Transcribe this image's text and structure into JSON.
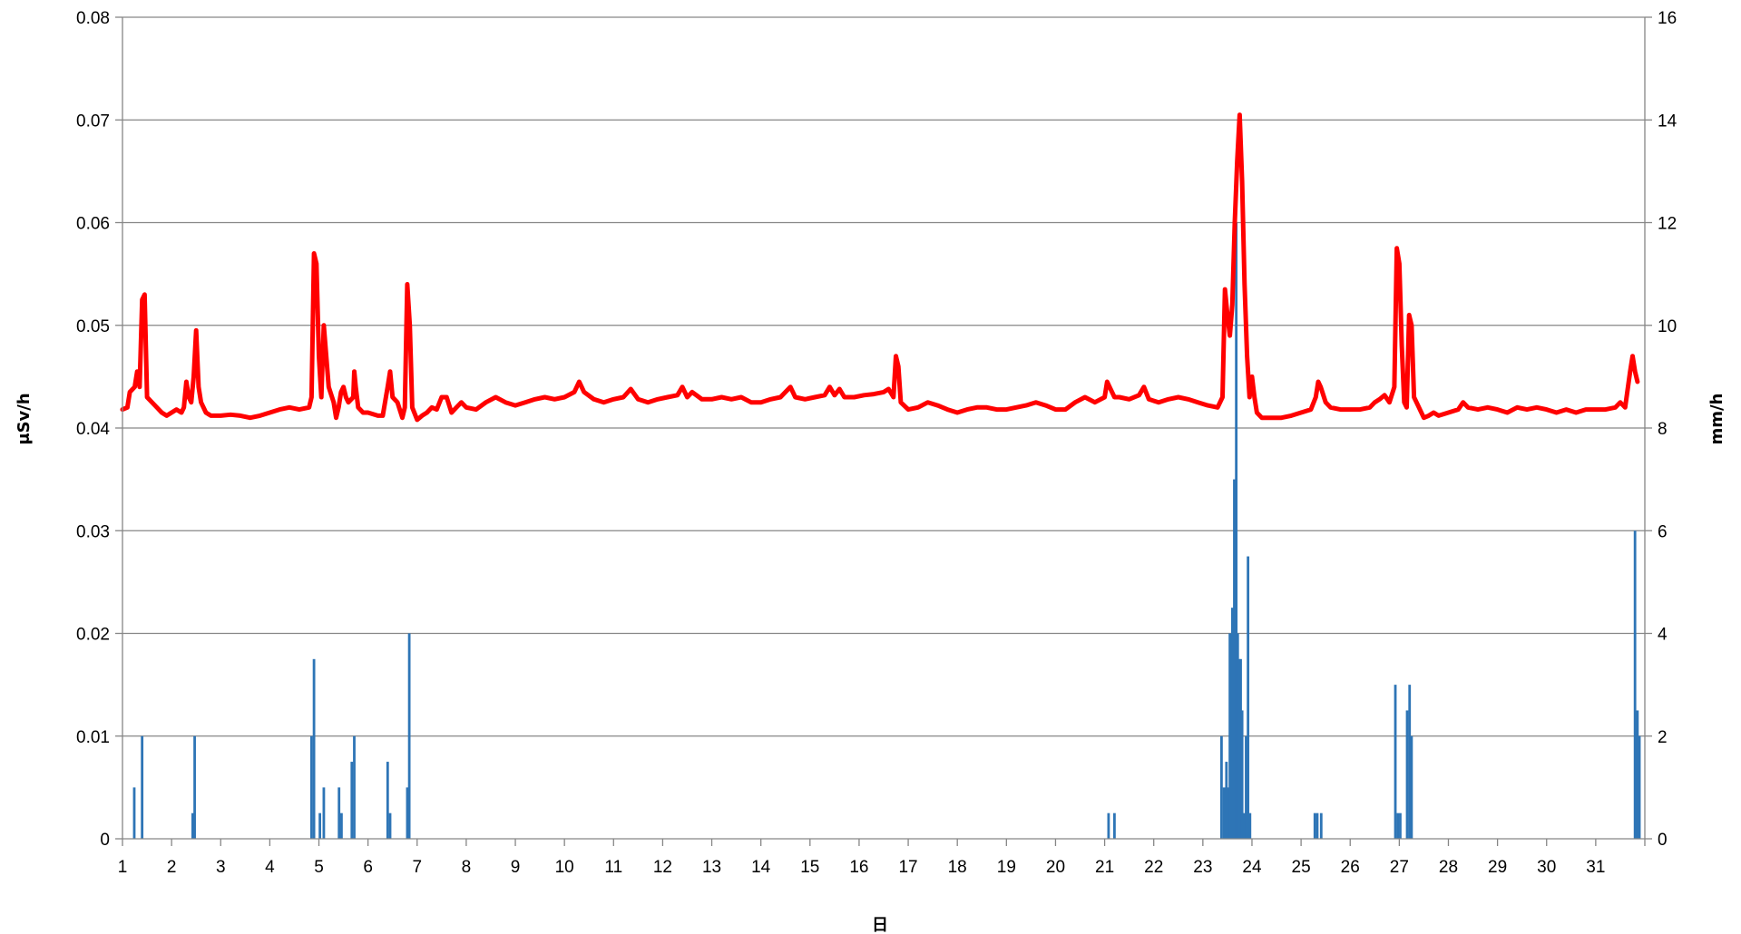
{
  "chart_data": {
    "type": "bar+line",
    "title": "",
    "xlabel": "日",
    "ylabel_left": "μSv/h",
    "ylabel_right": "mm/h",
    "xlim": [
      1,
      32
    ],
    "ylim_left": [
      0,
      0.08
    ],
    "ylim_right": [
      0,
      16
    ],
    "x_ticks": [
      1,
      2,
      3,
      4,
      5,
      6,
      7,
      8,
      9,
      10,
      11,
      12,
      13,
      14,
      15,
      16,
      17,
      18,
      19,
      20,
      21,
      22,
      23,
      24,
      25,
      26,
      27,
      28,
      29,
      30,
      31
    ],
    "y_ticks_left": [
      "0",
      "0.01",
      "0.02",
      "0.03",
      "0.04",
      "0.05",
      "0.06",
      "0.07",
      "0.08"
    ],
    "y_ticks_right": [
      "0",
      "2",
      "4",
      "6",
      "8",
      "10",
      "12",
      "14",
      "16"
    ],
    "grid": true,
    "colors": {
      "line": "#ff0000",
      "bars": "#2e75b6",
      "grid": "#868686",
      "axis": "#868686"
    },
    "series": [
      {
        "kind": "line",
        "axis": "left",
        "points": [
          [
            1.0,
            0.0418
          ],
          [
            1.1,
            0.042
          ],
          [
            1.15,
            0.0435
          ],
          [
            1.25,
            0.044
          ],
          [
            1.3,
            0.0455
          ],
          [
            1.35,
            0.044
          ],
          [
            1.4,
            0.0525
          ],
          [
            1.45,
            0.053
          ],
          [
            1.5,
            0.043
          ],
          [
            1.6,
            0.0425
          ],
          [
            1.7,
            0.042
          ],
          [
            1.8,
            0.0415
          ],
          [
            1.9,
            0.0412
          ],
          [
            2.0,
            0.0415
          ],
          [
            2.1,
            0.0418
          ],
          [
            2.2,
            0.0415
          ],
          [
            2.25,
            0.042
          ],
          [
            2.3,
            0.0445
          ],
          [
            2.35,
            0.043
          ],
          [
            2.4,
            0.0425
          ],
          [
            2.45,
            0.045
          ],
          [
            2.5,
            0.0495
          ],
          [
            2.55,
            0.044
          ],
          [
            2.6,
            0.0425
          ],
          [
            2.7,
            0.0415
          ],
          [
            2.8,
            0.0412
          ],
          [
            3.0,
            0.0412
          ],
          [
            3.2,
            0.0413
          ],
          [
            3.4,
            0.0412
          ],
          [
            3.6,
            0.041
          ],
          [
            3.8,
            0.0412
          ],
          [
            4.0,
            0.0415
          ],
          [
            4.2,
            0.0418
          ],
          [
            4.4,
            0.042
          ],
          [
            4.6,
            0.0418
          ],
          [
            4.8,
            0.042
          ],
          [
            4.85,
            0.043
          ],
          [
            4.9,
            0.057
          ],
          [
            4.95,
            0.056
          ],
          [
            5.0,
            0.047
          ],
          [
            5.05,
            0.043
          ],
          [
            5.1,
            0.05
          ],
          [
            5.15,
            0.047
          ],
          [
            5.2,
            0.044
          ],
          [
            5.3,
            0.0425
          ],
          [
            5.35,
            0.041
          ],
          [
            5.4,
            0.042
          ],
          [
            5.45,
            0.0435
          ],
          [
            5.5,
            0.044
          ],
          [
            5.55,
            0.043
          ],
          [
            5.6,
            0.0425
          ],
          [
            5.7,
            0.043
          ],
          [
            5.72,
            0.0455
          ],
          [
            5.75,
            0.044
          ],
          [
            5.8,
            0.042
          ],
          [
            5.9,
            0.0415
          ],
          [
            6.0,
            0.0415
          ],
          [
            6.2,
            0.0412
          ],
          [
            6.3,
            0.0412
          ],
          [
            6.4,
            0.044
          ],
          [
            6.45,
            0.0455
          ],
          [
            6.5,
            0.043
          ],
          [
            6.6,
            0.0425
          ],
          [
            6.7,
            0.041
          ],
          [
            6.75,
            0.042
          ],
          [
            6.8,
            0.054
          ],
          [
            6.85,
            0.05
          ],
          [
            6.9,
            0.042
          ],
          [
            7.0,
            0.0408
          ],
          [
            7.1,
            0.0412
          ],
          [
            7.2,
            0.0415
          ],
          [
            7.3,
            0.042
          ],
          [
            7.4,
            0.0418
          ],
          [
            7.5,
            0.043
          ],
          [
            7.6,
            0.043
          ],
          [
            7.7,
            0.0415
          ],
          [
            7.8,
            0.042
          ],
          [
            7.9,
            0.0425
          ],
          [
            8.0,
            0.042
          ],
          [
            8.2,
            0.0418
          ],
          [
            8.4,
            0.0425
          ],
          [
            8.6,
            0.043
          ],
          [
            8.8,
            0.0425
          ],
          [
            9.0,
            0.0422
          ],
          [
            9.2,
            0.0425
          ],
          [
            9.4,
            0.0428
          ],
          [
            9.6,
            0.043
          ],
          [
            9.8,
            0.0428
          ],
          [
            10.0,
            0.043
          ],
          [
            10.2,
            0.0435
          ],
          [
            10.3,
            0.0445
          ],
          [
            10.4,
            0.0435
          ],
          [
            10.6,
            0.0428
          ],
          [
            10.8,
            0.0425
          ],
          [
            11.0,
            0.0428
          ],
          [
            11.2,
            0.043
          ],
          [
            11.35,
            0.0438
          ],
          [
            11.5,
            0.0428
          ],
          [
            11.7,
            0.0425
          ],
          [
            11.9,
            0.0428
          ],
          [
            12.1,
            0.043
          ],
          [
            12.3,
            0.0432
          ],
          [
            12.4,
            0.044
          ],
          [
            12.5,
            0.043
          ],
          [
            12.6,
            0.0435
          ],
          [
            12.8,
            0.0428
          ],
          [
            13.0,
            0.0428
          ],
          [
            13.2,
            0.043
          ],
          [
            13.4,
            0.0428
          ],
          [
            13.6,
            0.043
          ],
          [
            13.8,
            0.0425
          ],
          [
            14.0,
            0.0425
          ],
          [
            14.2,
            0.0428
          ],
          [
            14.4,
            0.043
          ],
          [
            14.6,
            0.044
          ],
          [
            14.7,
            0.043
          ],
          [
            14.9,
            0.0428
          ],
          [
            15.1,
            0.043
          ],
          [
            15.3,
            0.0432
          ],
          [
            15.4,
            0.044
          ],
          [
            15.5,
            0.0432
          ],
          [
            15.6,
            0.0438
          ],
          [
            15.7,
            0.043
          ],
          [
            15.9,
            0.043
          ],
          [
            16.1,
            0.0432
          ],
          [
            16.3,
            0.0433
          ],
          [
            16.5,
            0.0435
          ],
          [
            16.6,
            0.0438
          ],
          [
            16.7,
            0.043
          ],
          [
            16.75,
            0.047
          ],
          [
            16.8,
            0.046
          ],
          [
            16.85,
            0.0425
          ],
          [
            17.0,
            0.0418
          ],
          [
            17.2,
            0.042
          ],
          [
            17.4,
            0.0425
          ],
          [
            17.6,
            0.0422
          ],
          [
            17.8,
            0.0418
          ],
          [
            18.0,
            0.0415
          ],
          [
            18.2,
            0.0418
          ],
          [
            18.4,
            0.042
          ],
          [
            18.6,
            0.042
          ],
          [
            18.8,
            0.0418
          ],
          [
            19.0,
            0.0418
          ],
          [
            19.2,
            0.042
          ],
          [
            19.4,
            0.0422
          ],
          [
            19.6,
            0.0425
          ],
          [
            19.8,
            0.0422
          ],
          [
            20.0,
            0.0418
          ],
          [
            20.2,
            0.0418
          ],
          [
            20.4,
            0.0425
          ],
          [
            20.6,
            0.043
          ],
          [
            20.8,
            0.0425
          ],
          [
            21.0,
            0.043
          ],
          [
            21.05,
            0.0445
          ],
          [
            21.1,
            0.044
          ],
          [
            21.2,
            0.043
          ],
          [
            21.3,
            0.043
          ],
          [
            21.5,
            0.0428
          ],
          [
            21.7,
            0.0432
          ],
          [
            21.8,
            0.044
          ],
          [
            21.9,
            0.0428
          ],
          [
            22.1,
            0.0425
          ],
          [
            22.3,
            0.0428
          ],
          [
            22.5,
            0.043
          ],
          [
            22.7,
            0.0428
          ],
          [
            22.9,
            0.0425
          ],
          [
            23.1,
            0.0422
          ],
          [
            23.3,
            0.042
          ],
          [
            23.4,
            0.043
          ],
          [
            23.45,
            0.0535
          ],
          [
            23.5,
            0.051
          ],
          [
            23.55,
            0.049
          ],
          [
            23.6,
            0.052
          ],
          [
            23.65,
            0.06
          ],
          [
            23.7,
            0.066
          ],
          [
            23.75,
            0.0705
          ],
          [
            23.8,
            0.064
          ],
          [
            23.85,
            0.054
          ],
          [
            23.9,
            0.047
          ],
          [
            23.95,
            0.043
          ],
          [
            24.0,
            0.045
          ],
          [
            24.05,
            0.043
          ],
          [
            24.1,
            0.0415
          ],
          [
            24.2,
            0.041
          ],
          [
            24.4,
            0.041
          ],
          [
            24.6,
            0.041
          ],
          [
            24.8,
            0.0412
          ],
          [
            25.0,
            0.0415
          ],
          [
            25.2,
            0.0418
          ],
          [
            25.3,
            0.043
          ],
          [
            25.35,
            0.0445
          ],
          [
            25.4,
            0.044
          ],
          [
            25.5,
            0.0425
          ],
          [
            25.6,
            0.042
          ],
          [
            25.8,
            0.0418
          ],
          [
            26.0,
            0.0418
          ],
          [
            26.2,
            0.0418
          ],
          [
            26.4,
            0.042
          ],
          [
            26.5,
            0.0425
          ],
          [
            26.6,
            0.0428
          ],
          [
            26.7,
            0.0432
          ],
          [
            26.8,
            0.0425
          ],
          [
            26.9,
            0.044
          ],
          [
            26.95,
            0.0575
          ],
          [
            27.0,
            0.056
          ],
          [
            27.05,
            0.048
          ],
          [
            27.1,
            0.0425
          ],
          [
            27.15,
            0.042
          ],
          [
            27.2,
            0.051
          ],
          [
            27.25,
            0.05
          ],
          [
            27.3,
            0.043
          ],
          [
            27.4,
            0.042
          ],
          [
            27.5,
            0.041
          ],
          [
            27.6,
            0.0412
          ],
          [
            27.7,
            0.0415
          ],
          [
            27.8,
            0.0412
          ],
          [
            28.0,
            0.0415
          ],
          [
            28.2,
            0.0418
          ],
          [
            28.3,
            0.0425
          ],
          [
            28.4,
            0.042
          ],
          [
            28.6,
            0.0418
          ],
          [
            28.8,
            0.042
          ],
          [
            29.0,
            0.0418
          ],
          [
            29.2,
            0.0415
          ],
          [
            29.4,
            0.042
          ],
          [
            29.6,
            0.0418
          ],
          [
            29.8,
            0.042
          ],
          [
            30.0,
            0.0418
          ],
          [
            30.2,
            0.0415
          ],
          [
            30.4,
            0.0418
          ],
          [
            30.6,
            0.0415
          ],
          [
            30.8,
            0.0418
          ],
          [
            31.0,
            0.0418
          ],
          [
            31.2,
            0.0418
          ],
          [
            31.4,
            0.042
          ],
          [
            31.5,
            0.0425
          ],
          [
            31.6,
            0.042
          ],
          [
            31.7,
            0.0455
          ],
          [
            31.75,
            0.047
          ],
          [
            31.8,
            0.0455
          ],
          [
            31.85,
            0.0445
          ]
        ]
      },
      {
        "kind": "bar",
        "axis": "right",
        "points": [
          [
            1.24,
            1.0
          ],
          [
            1.4,
            2.0
          ],
          [
            2.43,
            0.5
          ],
          [
            2.47,
            2.0
          ],
          [
            4.85,
            2.0
          ],
          [
            4.9,
            3.5
          ],
          [
            5.02,
            0.5
          ],
          [
            5.1,
            1.0
          ],
          [
            5.41,
            1.0
          ],
          [
            5.46,
            0.5
          ],
          [
            5.67,
            1.5
          ],
          [
            5.72,
            2.0
          ],
          [
            6.4,
            1.5
          ],
          [
            6.45,
            0.5
          ],
          [
            6.8,
            1.0
          ],
          [
            6.84,
            4.0
          ],
          [
            21.08,
            0.5
          ],
          [
            21.2,
            0.5
          ],
          [
            23.38,
            2.0
          ],
          [
            23.43,
            1.0
          ],
          [
            23.48,
            1.5
          ],
          [
            23.52,
            1.0
          ],
          [
            23.55,
            4.0
          ],
          [
            23.6,
            4.5
          ],
          [
            23.64,
            7.0
          ],
          [
            23.68,
            12.0
          ],
          [
            23.71,
            4.0
          ],
          [
            23.74,
            3.5
          ],
          [
            23.77,
            3.5
          ],
          [
            23.8,
            2.5
          ],
          [
            23.84,
            0.5
          ],
          [
            23.88,
            2.0
          ],
          [
            23.92,
            5.5
          ],
          [
            23.96,
            0.5
          ],
          [
            25.28,
            0.5
          ],
          [
            25.33,
            0.5
          ],
          [
            25.41,
            0.5
          ],
          [
            26.92,
            3.0
          ],
          [
            26.97,
            0.5
          ],
          [
            27.02,
            0.5
          ],
          [
            27.16,
            2.5
          ],
          [
            27.21,
            3.0
          ],
          [
            27.25,
            2.0
          ],
          [
            31.8,
            6.0
          ],
          [
            31.85,
            2.5
          ],
          [
            31.89,
            2.0
          ]
        ]
      }
    ]
  }
}
